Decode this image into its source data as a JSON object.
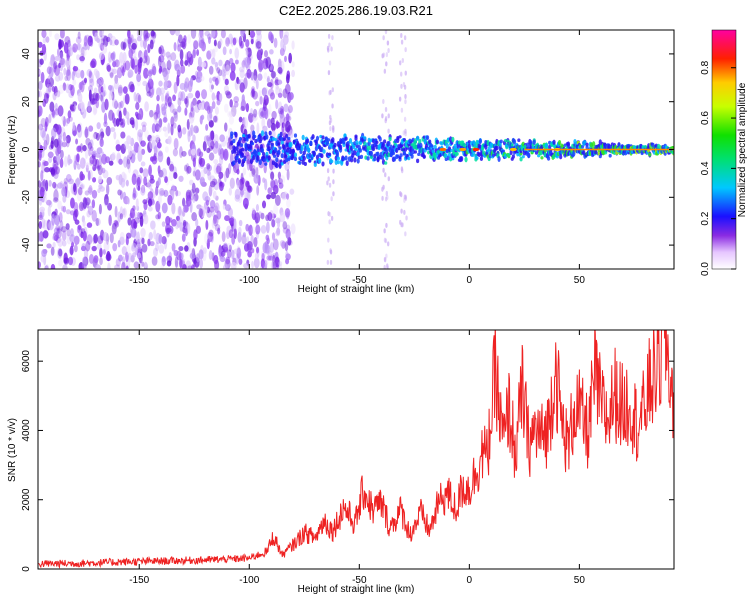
{
  "title": "C2E2.2025.286.19.03.R21",
  "colors": {
    "background": "#ffffff",
    "snr_line": "#ee2222",
    "spec_bg": "#ffffff"
  },
  "chart_data": [
    {
      "type": "heatmap",
      "name": "spectrogram",
      "xlabel": "Height of straight line (km)",
      "ylabel": "Frequency (Hz)",
      "xlim": [
        -196,
        93
      ],
      "ylim": [
        -50,
        50
      ],
      "xticks": [
        -150,
        -100,
        -50,
        0,
        50
      ],
      "xtick_labels": [
        "-150",
        "-100",
        "-50",
        "0",
        "50"
      ],
      "yticks": [
        -40,
        -20,
        0,
        20,
        40
      ],
      "ytick_labels": [
        "-40",
        "-20",
        "0",
        "20",
        "40"
      ],
      "colorbar": {
        "label": "Normalized spectral amplitude",
        "range": [
          0,
          0.95
        ],
        "ticks": [
          0.0,
          0.2,
          0.4,
          0.6,
          0.8
        ],
        "tick_labels": [
          "0.0",
          "0.2",
          "0.4",
          "0.6",
          "0.8"
        ],
        "colormap": "rainbow"
      },
      "features": {
        "noise_region_end": -80,
        "signal_onset": -108,
        "signal_center_hz": 0
      }
    },
    {
      "type": "line",
      "name": "snr",
      "xlabel": "Height of straight line (km)",
      "ylabel": "SNR (10 * v/v)",
      "xlim": [
        -196,
        93
      ],
      "ylim": [
        0,
        6900
      ],
      "xticks": [
        -150,
        -100,
        -50,
        0,
        50
      ],
      "xtick_labels": [
        "-150",
        "-100",
        "-50",
        "0",
        "50"
      ],
      "yticks": [
        0,
        2000,
        4000,
        6000
      ],
      "ytick_labels": [
        "0",
        "2000",
        "4000",
        "6000"
      ],
      "series": [
        {
          "x": [
            -196,
            -180,
            -160,
            -140,
            -120,
            -100,
            -92,
            -89,
            -85,
            -80,
            -75,
            -70,
            -66,
            -62,
            -57,
            -52,
            -48,
            -44,
            -40,
            -36,
            -31,
            -27,
            -22,
            -18,
            -14,
            -10,
            -6,
            -3,
            0,
            3,
            6,
            8,
            10,
            12,
            14,
            16,
            18,
            21,
            24,
            27,
            30,
            33,
            36,
            39,
            42,
            45,
            48,
            51,
            54,
            57,
            60,
            63,
            66,
            70,
            73,
            76,
            79,
            82,
            85,
            87,
            89,
            91,
            93
          ],
          "y": [
            150,
            160,
            200,
            230,
            260,
            310,
            500,
            950,
            400,
            700,
            1050,
            900,
            1400,
            1100,
            1800,
            1300,
            2300,
            1700,
            1900,
            1200,
            1700,
            1000,
            1600,
            1100,
            1900,
            2200,
            1700,
            2400,
            2300,
            2800,
            3400,
            3200,
            4400,
            5900,
            4200,
            3700,
            4700,
            3300,
            5200,
            3600,
            4000,
            3800,
            4100,
            5900,
            4200,
            3500,
            4800,
            4400,
            3900,
            5600,
            4700,
            4300,
            5100,
            4600,
            4900,
            4200,
            4500,
            5300,
            5800,
            6100,
            6900,
            5600,
            4900
          ]
        }
      ]
    }
  ]
}
